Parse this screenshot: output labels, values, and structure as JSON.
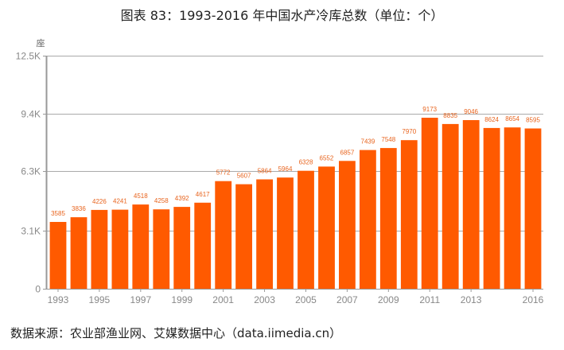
{
  "title": "图表 83：1993-2016 年中国水产冷库总数（单位：个）",
  "source": "数据来源：农业部渔业网、艾媒数据中心（data.iimedia.cn）",
  "colors": {
    "bar": "#FF5A00",
    "label": "#E8641E",
    "axis": "#999999",
    "grid": "#AAAAAA",
    "tick_text": "#888888"
  },
  "chart_data": {
    "type": "bar",
    "title": "图表 83：1993-2016 年中国水产冷库总数（单位：个）",
    "xlabel": "",
    "ylabel": "座",
    "ylim": [
      0,
      12500
    ],
    "yticks": [
      0,
      3100,
      6300,
      9400,
      12500
    ],
    "ytick_labels": [
      "0",
      "3.1K",
      "6.3K",
      "9.4K",
      "12.5K"
    ],
    "grid": true,
    "legend": null,
    "categories": [
      "1993",
      "1994",
      "1995",
      "1996",
      "1997",
      "1998",
      "1999",
      "2000",
      "2001",
      "2002",
      "2003",
      "2004",
      "2005",
      "2006",
      "2007",
      "2008",
      "2009",
      "2010",
      "2011",
      "2012",
      "2013",
      "2014",
      "2015",
      "2016"
    ],
    "xtick_labels": [
      "1993",
      "1995",
      "1997",
      "1999",
      "2001",
      "2003",
      "2005",
      "2007",
      "2009",
      "2011",
      "2013",
      "2016"
    ],
    "values": [
      3585,
      3836,
      4226,
      4241,
      4518,
      4258,
      4392,
      4617,
      5772,
      5607,
      5864,
      5964,
      6328,
      6552,
      6857,
      7439,
      7548,
      7970,
      9173,
      8835,
      9046,
      8624,
      8654,
      8595
    ],
    "data_labels": true
  }
}
